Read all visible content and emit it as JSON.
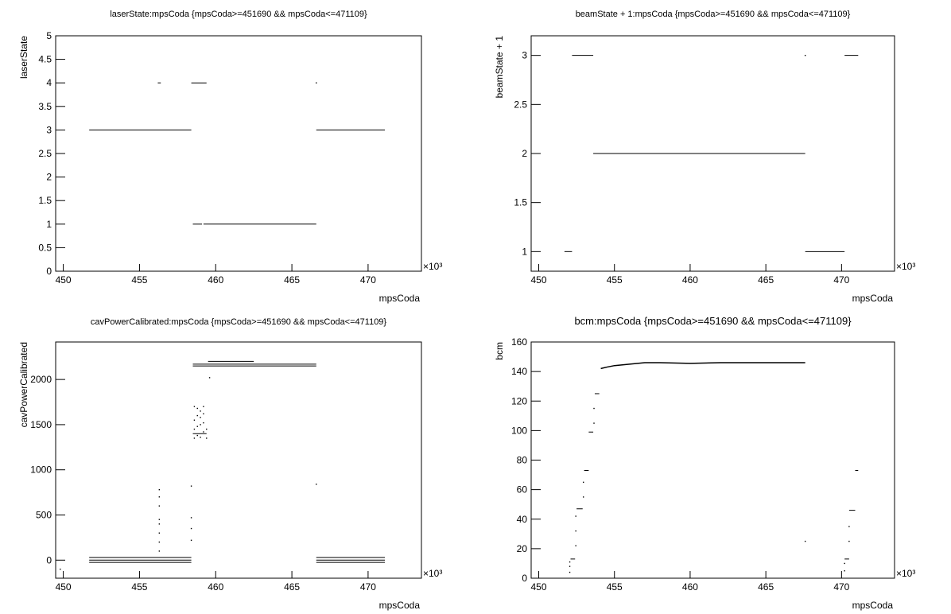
{
  "chart_data": [
    {
      "type": "scatter",
      "title": "laserState:mpsCoda {mpsCoda>=451690 && mpsCoda<=471109}",
      "x_label": "mpsCoda",
      "y_label": "laserState",
      "x_exponent": "×10³",
      "xlim": [
        449.5,
        473.5
      ],
      "xticks": [
        450,
        455,
        460,
        465,
        470
      ],
      "ylim": [
        0,
        5
      ],
      "yticks": [
        0,
        0.5,
        1,
        1.5,
        2,
        2.5,
        3,
        3.5,
        4,
        4.5,
        5
      ],
      "color": "#000000",
      "segments": [
        {
          "x": [
            451.7,
            458.4
          ],
          "y": 3
        },
        {
          "x": [
            456.2,
            456.4
          ],
          "y": 4
        },
        {
          "x": [
            458.4,
            459.4
          ],
          "y": 4
        },
        {
          "x": [
            458.5,
            459.1
          ],
          "y": 1
        },
        {
          "x": [
            459.2,
            466.6
          ],
          "y": 1
        },
        {
          "x": [
            466.6,
            471.1
          ],
          "y": 3
        }
      ],
      "points": {
        "x": [
          466.6
        ],
        "y": [
          4
        ]
      }
    },
    {
      "type": "scatter",
      "title": "beamState + 1:mpsCoda {mpsCoda>=451690 && mpsCoda<=471109}",
      "x_label": "mpsCoda",
      "y_label": "beamState + 1",
      "x_exponent": "×10³",
      "xlim": [
        449.5,
        473.5
      ],
      "xticks": [
        450,
        455,
        460,
        465,
        470
      ],
      "ylim": [
        0.8,
        3.2
      ],
      "yticks": [
        1,
        1.5,
        2,
        2.5,
        3
      ],
      "color": "#000000",
      "segments": [
        {
          "x": [
            451.7,
            452.2
          ],
          "y": 1
        },
        {
          "x": [
            452.2,
            453.6
          ],
          "y": 3
        },
        {
          "x": [
            453.6,
            467.6
          ],
          "y": 2
        },
        {
          "x": [
            467.6,
            470.2
          ],
          "y": 1
        },
        {
          "x": [
            470.2,
            471.1
          ],
          "y": 3
        }
      ],
      "points": {
        "x": [
          467.6
        ],
        "y": [
          3
        ]
      }
    },
    {
      "type": "scatter",
      "title": "cavPowerCalibrated:mpsCoda {mpsCoda>=451690 && mpsCoda<=471109}",
      "x_label": "mpsCoda",
      "y_label": "cavPowerCalibrated",
      "x_exponent": "×10³",
      "xlim": [
        449.5,
        473.5
      ],
      "xticks": [
        450,
        455,
        460,
        465,
        470
      ],
      "ylim": [
        -200,
        2415
      ],
      "yticks": [
        0,
        500,
        1000,
        1500,
        2000
      ],
      "color": "#000000",
      "segments": [
        {
          "x": [
            451.7,
            458.4
          ],
          "y": 30
        },
        {
          "x": [
            451.7,
            458.4
          ],
          "y": 0
        },
        {
          "x": [
            451.7,
            458.4
          ],
          "y": -25
        },
        {
          "x": [
            466.6,
            471.1
          ],
          "y": 30
        },
        {
          "x": [
            466.6,
            471.1
          ],
          "y": 0
        },
        {
          "x": [
            466.6,
            471.1
          ],
          "y": -25
        },
        {
          "x": [
            458.5,
            466.6
          ],
          "y": 2150
        },
        {
          "x": [
            458.5,
            466.6
          ],
          "y": 2170
        },
        {
          "x": [
            459.5,
            462.5
          ],
          "y": 2200
        },
        {
          "x": [
            458.5,
            459.4
          ],
          "y": 1400
        }
      ],
      "points": {
        "x": [
          449.8,
          456.3,
          456.3,
          456.3,
          456.3,
          456.3,
          456.3,
          456.3,
          456.3,
          458.4,
          458.4,
          458.4,
          458.4,
          458.6,
          458.6,
          458.6,
          458.6,
          458.8,
          458.8,
          458.8,
          458.8,
          459.0,
          459.0,
          459.0,
          459.0,
          459.2,
          459.2,
          459.2,
          459.2,
          459.4,
          459.4,
          459.6,
          466.6
        ],
        "y": [
          -100,
          100,
          200,
          300,
          400,
          450,
          600,
          700,
          780,
          220,
          350,
          470,
          820,
          1350,
          1450,
          1550,
          1700,
          1380,
          1480,
          1600,
          1680,
          1360,
          1500,
          1580,
          1650,
          1420,
          1520,
          1620,
          1700,
          1350,
          1450,
          2020,
          840
        ]
      }
    },
    {
      "type": "scatter",
      "title": "bcm:mpsCoda {mpsCoda>=451690 && mpsCoda<=471109}",
      "x_label": "mpsCoda",
      "y_label": "bcm",
      "x_exponent": "×10³",
      "xlim": [
        449.5,
        473.5
      ],
      "xticks": [
        450,
        455,
        460,
        465,
        470
      ],
      "ylim": [
        0,
        160
      ],
      "yticks": [
        0,
        20,
        40,
        60,
        80,
        100,
        120,
        140,
        160
      ],
      "color": "#000000",
      "segments": [
        {
          "x": [
            451.7,
            452.0
          ],
          "y": 0
        },
        {
          "x": [
            452.1,
            452.4
          ],
          "y": 13
        },
        {
          "x": [
            452.5,
            452.9
          ],
          "y": 47
        },
        {
          "x": [
            453.0,
            453.3
          ],
          "y": 73
        },
        {
          "x": [
            453.3,
            453.6
          ],
          "y": 99
        },
        {
          "x": [
            453.7,
            454.0
          ],
          "y": 125
        },
        {
          "x": [
            467.6,
            470.2
          ],
          "y": 0
        },
        {
          "x": [
            470.2,
            470.5
          ],
          "y": 13
        },
        {
          "x": [
            470.5,
            470.9
          ],
          "y": 46
        },
        {
          "x": [
            470.9,
            471.1
          ],
          "y": 73
        }
      ],
      "line": {
        "x": [
          454.1,
          454.5,
          455,
          456,
          457,
          458,
          460,
          462,
          464,
          466,
          467.6
        ],
        "y": [
          142,
          143,
          144,
          145,
          146,
          146,
          145.5,
          146,
          146,
          146,
          146
        ]
      },
      "points": {
        "x": [
          452.05,
          452.05,
          452.05,
          452.45,
          452.45,
          452.45,
          452.95,
          452.95,
          453.65,
          453.65,
          467.6,
          470.2,
          470.2,
          470.5,
          470.5
        ],
        "y": [
          4,
          8,
          11,
          22,
          32,
          42,
          55,
          65,
          105,
          115,
          25,
          5,
          10,
          25,
          35
        ]
      }
    }
  ]
}
